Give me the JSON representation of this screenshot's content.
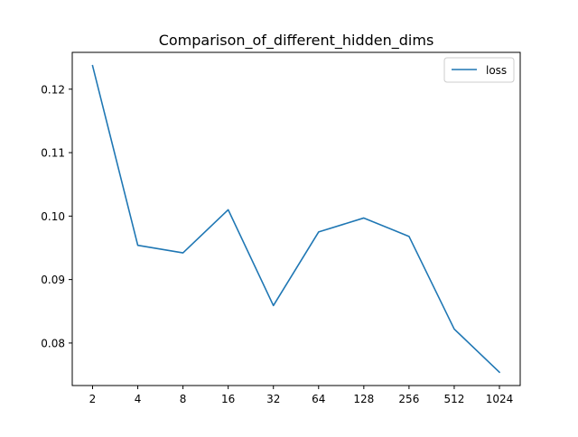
{
  "chart_data": {
    "type": "line",
    "title": "Comparison_of_different_hidden_dims",
    "xlabel": "",
    "ylabel": "",
    "categories": [
      "2",
      "4",
      "8",
      "16",
      "32",
      "64",
      "128",
      "256",
      "512",
      "1024"
    ],
    "series": [
      {
        "name": "loss",
        "values": [
          0.1237,
          0.0954,
          0.0942,
          0.101,
          0.0859,
          0.0975,
          0.0997,
          0.0968,
          0.0822,
          0.0754
        ],
        "color": "#1f77b4"
      }
    ],
    "ylim": [
      0.0733,
      0.1258
    ],
    "yticks": [
      0.08,
      0.09,
      0.1,
      0.11,
      0.12
    ],
    "ytick_labels": [
      "0.08",
      "0.09",
      "0.10",
      "0.11",
      "0.12"
    ],
    "grid": false,
    "legend": {
      "placement": "top-right",
      "entries": [
        "loss"
      ]
    }
  }
}
